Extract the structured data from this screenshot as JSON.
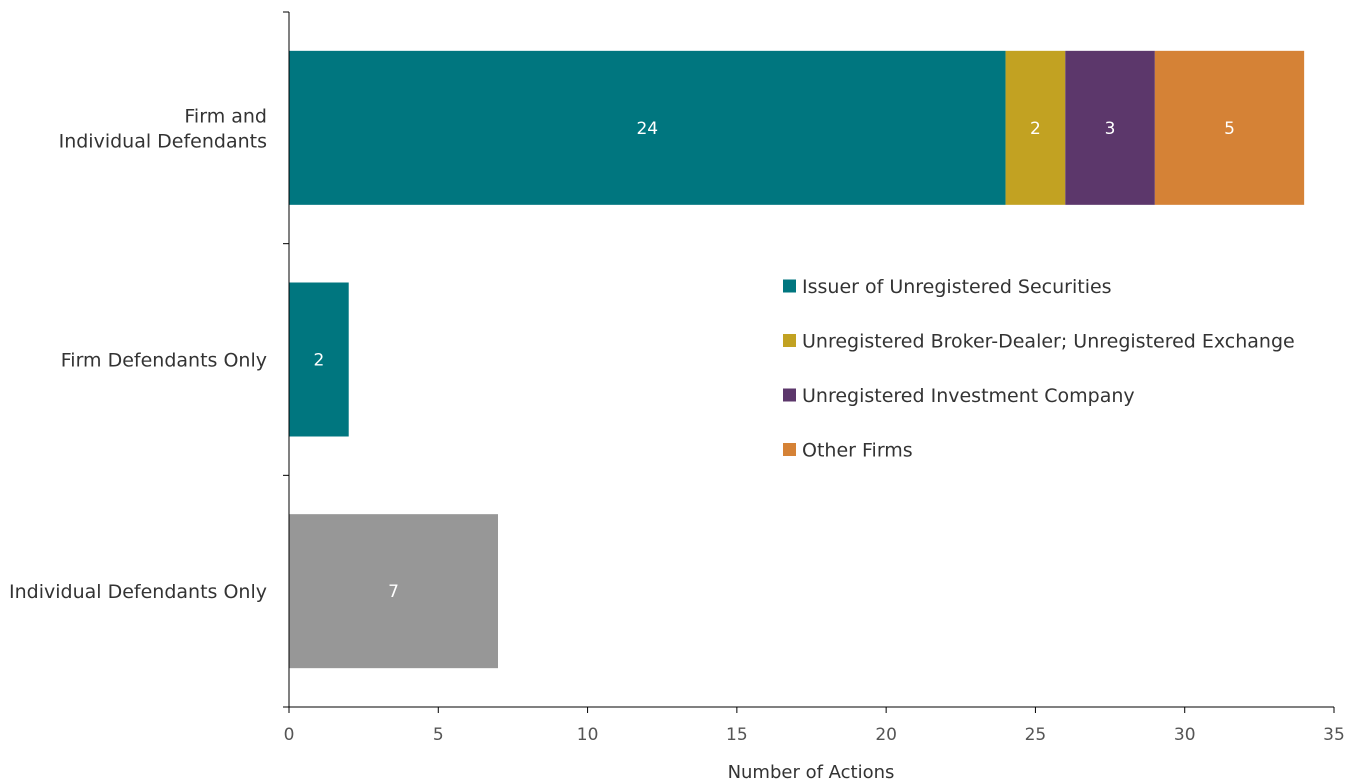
{
  "chart_data": {
    "type": "bar",
    "orientation": "horizontal",
    "stacked": true,
    "title": "",
    "xlabel": "Number of Actions",
    "ylabel": "",
    "xlim": [
      0,
      35
    ],
    "x_ticks": [
      0,
      5,
      10,
      15,
      20,
      25,
      30,
      35
    ],
    "grid": false,
    "legend_position": "right",
    "categories": [
      "Firm and\nIndividual Defendants",
      "Firm Defendants Only",
      "Individual Defendants Only"
    ],
    "series": [
      {
        "name": "Issuer of Unregistered Securities",
        "color": "#00767F",
        "values": [
          24,
          2,
          null
        ]
      },
      {
        "name": "Unregistered Broker-Dealer; Unregistered Exchange",
        "color": "#C2A222",
        "values": [
          2,
          null,
          null
        ]
      },
      {
        "name": "Unregistered Investment Company",
        "color": "#5C376B",
        "values": [
          3,
          null,
          null
        ]
      },
      {
        "name": "Other Firms",
        "color": "#D58236",
        "values": [
          5,
          null,
          null
        ]
      },
      {
        "name": "",
        "color": "#979797",
        "values": [
          null,
          null,
          7
        ]
      }
    ],
    "legend_entries": [
      0,
      1,
      2,
      3
    ]
  }
}
